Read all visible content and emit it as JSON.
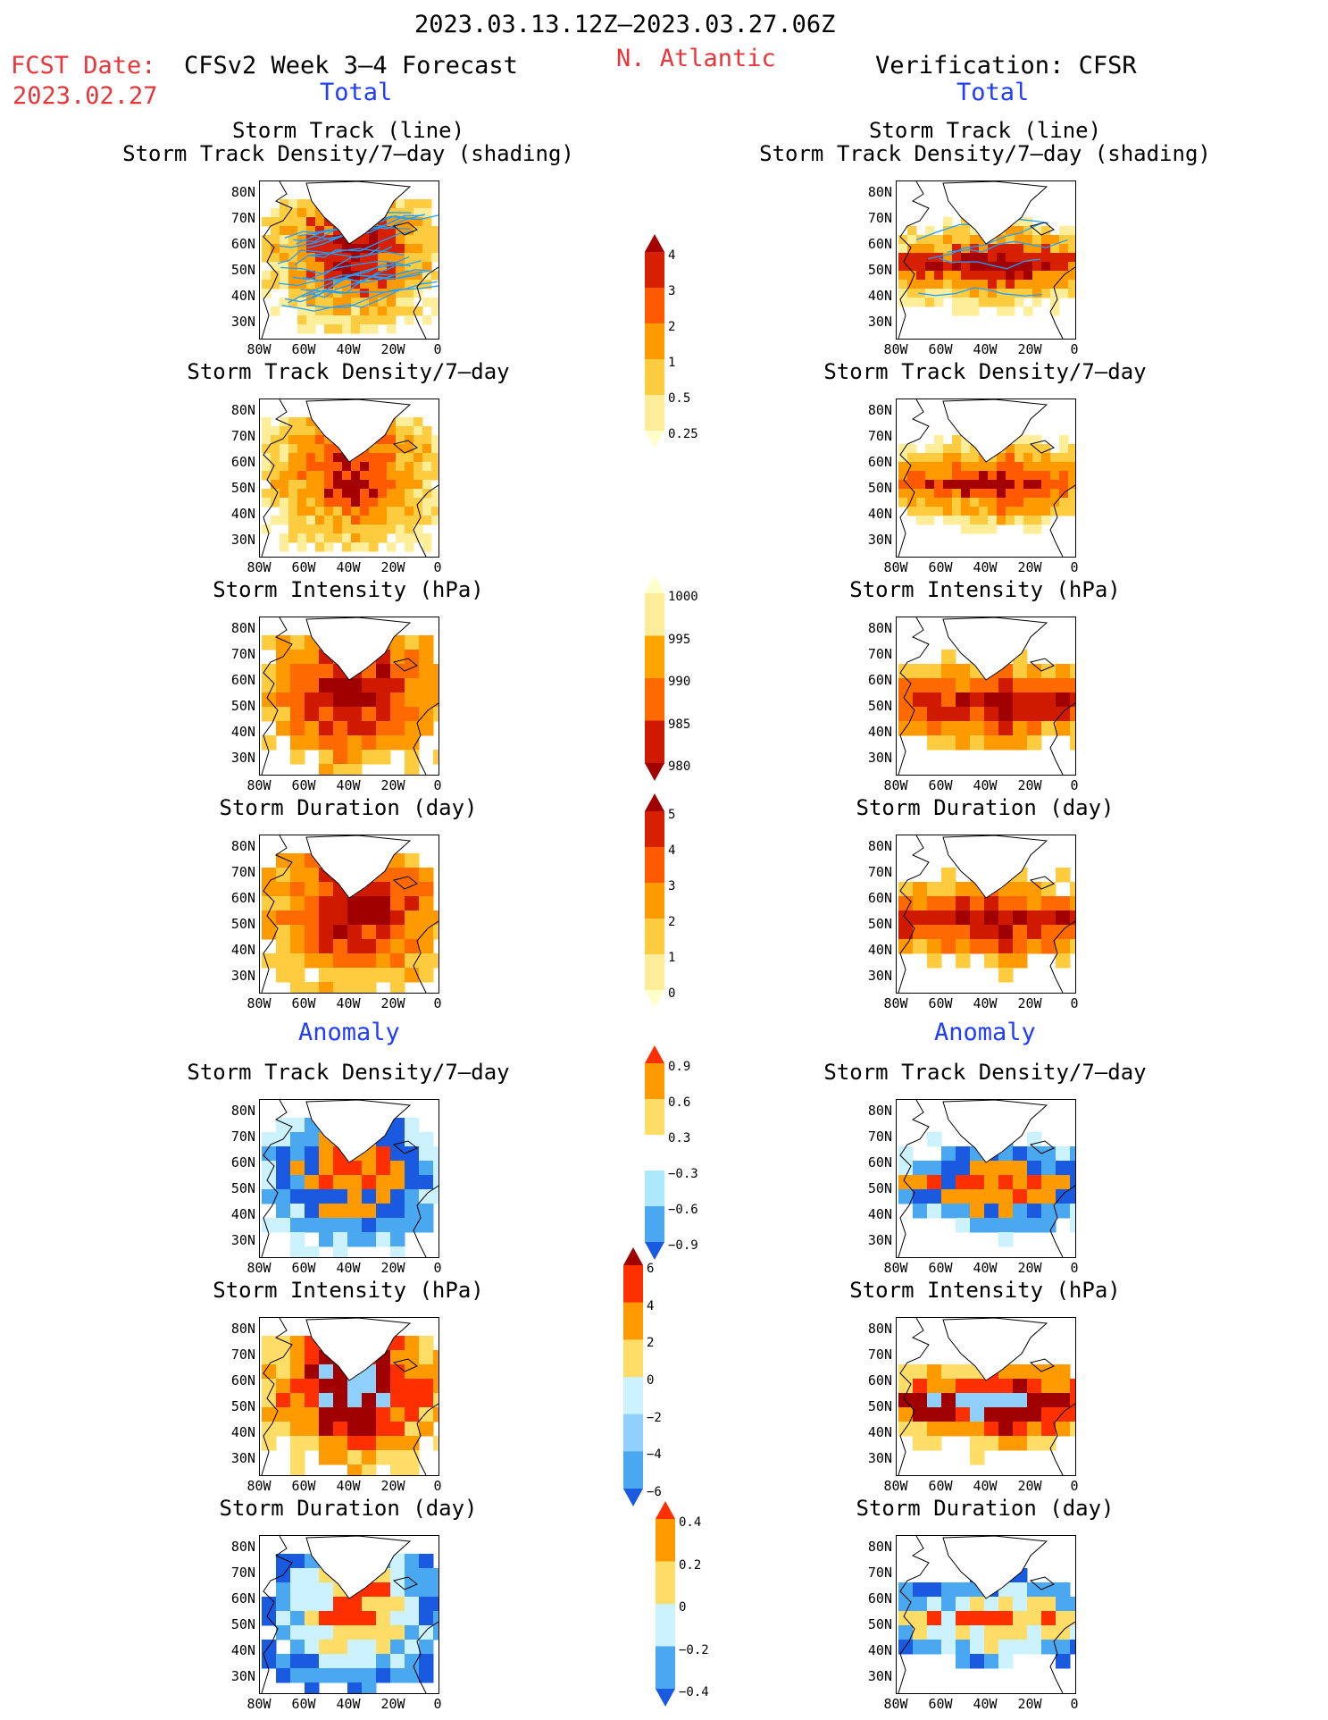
{
  "header": {
    "period": "2023.03.13.12Z–2023.03.27.06Z",
    "fcst_label": "FCST Date:",
    "fcst_date": "2023.02.27",
    "model": "CFSv2 Week 3–4 Forecast",
    "region": "N. Atlantic",
    "verification": "Verification: CFSR"
  },
  "sections": {
    "total": "Total",
    "anomaly": "Anomaly"
  },
  "panel_titles": {
    "track_line": "Storm Track (line)",
    "track_shading": "Storm Track Density/7–day (shading)",
    "density": "Storm Track Density/7–day",
    "intensity": "Storm Intensity (hPa)",
    "duration": "Storm Duration (day)"
  },
  "axes": {
    "lat_labels": [
      "80N",
      "70N",
      "60N",
      "50N",
      "40N",
      "30N"
    ],
    "lon_labels": [
      "80W",
      "60W",
      "40W",
      "20W",
      "0"
    ]
  },
  "colorbars": [
    {
      "id": "density_total",
      "labels": [
        "4",
        "3",
        "2",
        "1",
        "0.5",
        "0.25"
      ],
      "colors": [
        "#a50000",
        "#d62000",
        "#ff5a00",
        "#ff9a00",
        "#ffcc40",
        "#ffee99",
        "#ffffcc"
      ]
    },
    {
      "id": "intensity_total",
      "labels": [
        "1000",
        "995",
        "990",
        "985",
        "980"
      ],
      "colors": [
        "#ffffcc",
        "#ffee99",
        "#ffa500",
        "#ff6a00",
        "#d01a00",
        "#a00000"
      ]
    },
    {
      "id": "duration_total",
      "labels": [
        "5",
        "4",
        "3",
        "2",
        "1",
        "0"
      ],
      "colors": [
        "#a00000",
        "#d62000",
        "#ff5a00",
        "#ff9a00",
        "#ffcc40",
        "#ffee99",
        "#ffffcc"
      ]
    },
    {
      "id": "density_anom",
      "labels": [
        "0.9",
        "0.6",
        "0.3",
        "−0.3",
        "−0.6",
        "−0.9"
      ],
      "colors": [
        "#ff3000",
        "#ff9a00",
        "#ffdd66",
        "#ffffff",
        "#aee8ff",
        "#4aa8f0",
        "#1a5ae0"
      ]
    },
    {
      "id": "intensity_anom",
      "labels": [
        "6",
        "4",
        "2",
        "0",
        "−2",
        "−4",
        "−6"
      ],
      "colors": [
        "#a00000",
        "#ff3000",
        "#ff9a00",
        "#ffdd66",
        "#ccf2ff",
        "#8fd0ff",
        "#4aa8f0",
        "#1a5ae0"
      ]
    },
    {
      "id": "duration_anom",
      "labels": [
        "0.4",
        "0.2",
        "0",
        "−0.2",
        "−0.4"
      ],
      "colors": [
        "#ff3000",
        "#ff9a00",
        "#ffdd66",
        "#ccf2ff",
        "#4aa8f0",
        "#1a5ae0"
      ]
    }
  ],
  "colors": {
    "header_red": "#e8353a",
    "label_blue": "#1f3cff",
    "track_line": "#1fa0ff"
  }
}
